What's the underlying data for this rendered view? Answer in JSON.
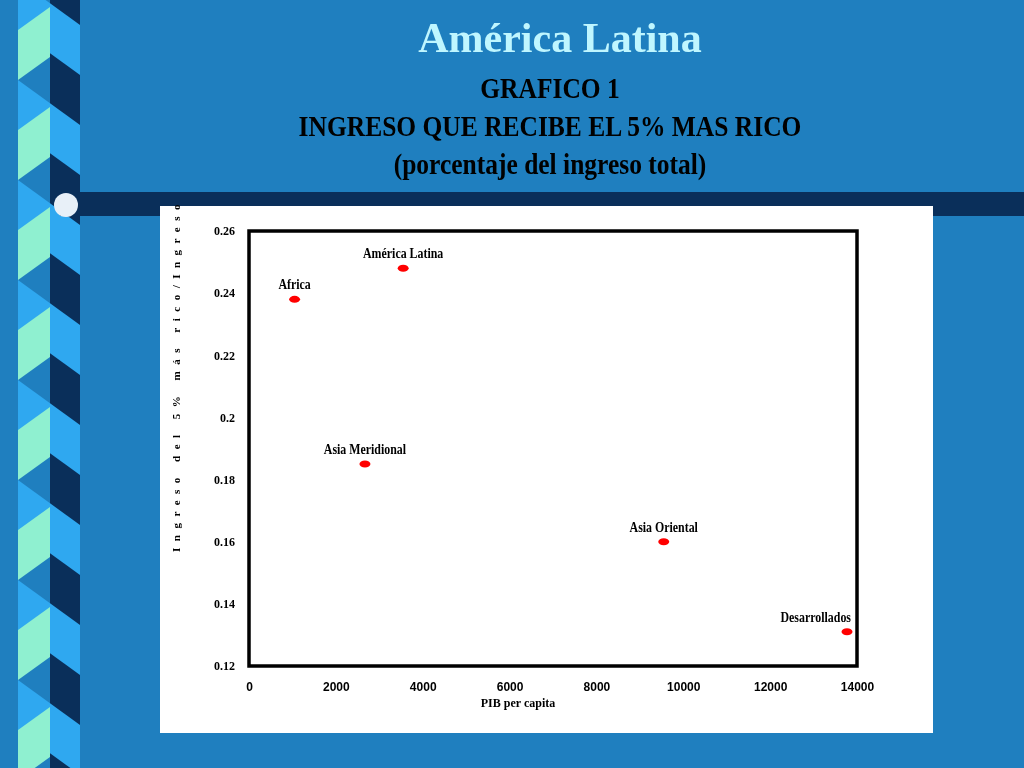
{
  "chart_data": {
    "type": "scatter",
    "title": "América Latina",
    "subtitle": "GRAFICO 1\nINGRESO QUE RECIBE EL 5% MAS RICO\n(porcentaje del ingreso total)",
    "xlabel": "PIB per capita",
    "ylabel": "Ingreso del 5% más rico/Ingreso",
    "series": [
      {
        "color": "#ff0000",
        "x": [
          1050,
          3550,
          2670,
          9550,
          13770
        ],
        "values": [
          0.238,
          0.248,
          0.185,
          0.16,
          0.131
        ]
      }
    ],
    "annotations": [
      {
        "text": "Africa",
        "x": 1050,
        "y": 0.238
      },
      {
        "text": "América Latina",
        "x": 3550,
        "y": 0.248
      },
      {
        "text": "Asia Meridional",
        "x": 2670,
        "y": 0.185
      },
      {
        "text": "Asia Oriental",
        "x": 9550,
        "y": 0.16
      },
      {
        "text": "Desarrollados",
        "x": 13770,
        "y": 0.131
      }
    ],
    "xlim": [
      0,
      14000
    ],
    "xticks": [
      0,
      2000,
      4000,
      6000,
      8000,
      10000,
      12000,
      14000
    ],
    "ylim": [
      0.12,
      0.26
    ],
    "yticks": [
      0.12,
      0.14,
      0.16,
      0.18,
      0.2,
      0.22,
      0.24,
      0.26
    ],
    "grid": false,
    "marker": "circle"
  }
}
